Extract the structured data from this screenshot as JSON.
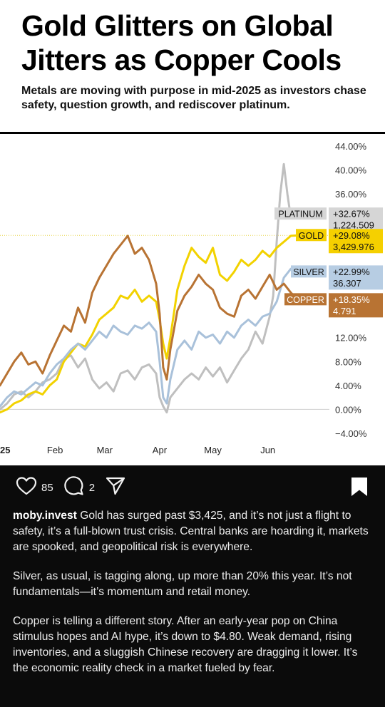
{
  "article": {
    "headline": "Gold Glitters on Global Jitters as Copper Cools",
    "subhead": "Metals are moving with purpose in mid-2025 as investors chase safety, question growth, and rediscover platinum."
  },
  "chart_data": {
    "type": "line",
    "title": "",
    "xlabel": "",
    "ylabel": "",
    "y_unit": "%",
    "ylim": [
      -4,
      44
    ],
    "yticks": [
      "44.00%",
      "40.00%",
      "36.00%",
      "",
      "",
      "",
      "",
      "12.00%",
      "8.00%",
      "4.00%",
      "0.00%",
      "−4.00%"
    ],
    "ytick_values": [
      44,
      40,
      36,
      32,
      28,
      24,
      20,
      12,
      8,
      4,
      0,
      -4
    ],
    "x_labels": [
      "25",
      "Feb",
      "Mar",
      "Apr",
      "May",
      "Jun"
    ],
    "x_label_pos": [
      0,
      31,
      59,
      90,
      120,
      151
    ],
    "x_range": [
      0,
      168
    ],
    "grid": false,
    "reference_line": 29.08,
    "series": [
      {
        "name": "PLATINUM",
        "color": "#bfbfbf",
        "change": "+32.67%",
        "price": "1,224.509",
        "last": 32.67,
        "points": [
          [
            0,
            0
          ],
          [
            4,
            1
          ],
          [
            8,
            2.5
          ],
          [
            12,
            3
          ],
          [
            16,
            2
          ],
          [
            20,
            3
          ],
          [
            24,
            4.5
          ],
          [
            28,
            5
          ],
          [
            32,
            6
          ],
          [
            36,
            8.5
          ],
          [
            40,
            9
          ],
          [
            44,
            7
          ],
          [
            48,
            8.5
          ],
          [
            52,
            5
          ],
          [
            56,
            3.5
          ],
          [
            60,
            4.5
          ],
          [
            64,
            3
          ],
          [
            68,
            6
          ],
          [
            72,
            6.5
          ],
          [
            76,
            5
          ],
          [
            80,
            7
          ],
          [
            84,
            7.5
          ],
          [
            88,
            6
          ],
          [
            90,
            2
          ],
          [
            92,
            0.5
          ],
          [
            94,
            -0.5
          ],
          [
            96,
            2
          ],
          [
            100,
            3.5
          ],
          [
            104,
            5
          ],
          [
            108,
            6
          ],
          [
            112,
            5
          ],
          [
            116,
            7
          ],
          [
            120,
            5.5
          ],
          [
            124,
            7
          ],
          [
            128,
            4.5
          ],
          [
            132,
            6.5
          ],
          [
            136,
            8.5
          ],
          [
            140,
            10
          ],
          [
            144,
            13
          ],
          [
            148,
            11
          ],
          [
            152,
            15.5
          ],
          [
            154,
            19
          ],
          [
            156,
            28
          ],
          [
            158,
            36
          ],
          [
            160,
            41
          ],
          [
            162,
            36
          ],
          [
            164,
            32
          ],
          [
            168,
            32.67
          ]
        ]
      },
      {
        "name": "GOLD",
        "color": "#f2d200",
        "change": "+29.08%",
        "price": "3,429.976",
        "last": 29.08,
        "points": [
          [
            0,
            -0.5
          ],
          [
            4,
            0
          ],
          [
            8,
            1
          ],
          [
            12,
            1.5
          ],
          [
            16,
            2.5
          ],
          [
            20,
            3
          ],
          [
            24,
            2.5
          ],
          [
            28,
            4
          ],
          [
            32,
            5
          ],
          [
            36,
            8
          ],
          [
            40,
            9.5
          ],
          [
            44,
            11
          ],
          [
            48,
            10.5
          ],
          [
            52,
            12.5
          ],
          [
            56,
            15
          ],
          [
            60,
            16
          ],
          [
            64,
            17
          ],
          [
            68,
            19
          ],
          [
            72,
            18.5
          ],
          [
            76,
            20
          ],
          [
            80,
            18
          ],
          [
            84,
            19
          ],
          [
            88,
            18
          ],
          [
            90,
            15
          ],
          [
            92,
            11
          ],
          [
            94,
            8.5
          ],
          [
            96,
            12
          ],
          [
            100,
            20
          ],
          [
            104,
            24
          ],
          [
            108,
            27
          ],
          [
            112,
            25.5
          ],
          [
            116,
            24.5
          ],
          [
            120,
            27
          ],
          [
            124,
            22.5
          ],
          [
            128,
            21.5
          ],
          [
            132,
            23
          ],
          [
            136,
            25
          ],
          [
            140,
            24
          ],
          [
            144,
            25
          ],
          [
            148,
            26.5
          ],
          [
            152,
            25.5
          ],
          [
            156,
            27
          ],
          [
            160,
            28
          ],
          [
            164,
            29
          ],
          [
            168,
            29.08
          ]
        ]
      },
      {
        "name": "SILVER",
        "color": "#a9c1da",
        "change": "+22.99%",
        "price": "36.307",
        "last": 22.99,
        "points": [
          [
            0,
            0.5
          ],
          [
            4,
            2
          ],
          [
            8,
            3
          ],
          [
            12,
            2.5
          ],
          [
            16,
            3.5
          ],
          [
            20,
            4.5
          ],
          [
            24,
            4
          ],
          [
            28,
            6
          ],
          [
            32,
            7.5
          ],
          [
            36,
            8.5
          ],
          [
            40,
            10
          ],
          [
            44,
            11
          ],
          [
            48,
            10
          ],
          [
            52,
            11.5
          ],
          [
            56,
            13
          ],
          [
            60,
            12
          ],
          [
            64,
            14
          ],
          [
            68,
            13
          ],
          [
            72,
            12.5
          ],
          [
            76,
            14
          ],
          [
            80,
            13.5
          ],
          [
            84,
            14.5
          ],
          [
            88,
            13
          ],
          [
            90,
            8
          ],
          [
            92,
            2
          ],
          [
            94,
            1
          ],
          [
            96,
            5
          ],
          [
            100,
            10
          ],
          [
            104,
            11.5
          ],
          [
            108,
            10
          ],
          [
            112,
            13
          ],
          [
            116,
            12
          ],
          [
            120,
            12.5
          ],
          [
            124,
            11
          ],
          [
            128,
            13
          ],
          [
            132,
            12
          ],
          [
            136,
            14
          ],
          [
            140,
            15
          ],
          [
            144,
            14
          ],
          [
            148,
            15.5
          ],
          [
            152,
            16
          ],
          [
            156,
            18
          ],
          [
            160,
            22
          ],
          [
            164,
            23.5
          ],
          [
            168,
            22.99
          ]
        ]
      },
      {
        "name": "COPPER",
        "color": "#b87333",
        "change": "+18.35%",
        "price": "4.791",
        "last": 18.35,
        "points": [
          [
            0,
            4
          ],
          [
            4,
            6
          ],
          [
            8,
            8
          ],
          [
            12,
            9.5
          ],
          [
            16,
            7.5
          ],
          [
            20,
            8
          ],
          [
            24,
            6
          ],
          [
            28,
            9
          ],
          [
            32,
            11.5
          ],
          [
            36,
            14
          ],
          [
            40,
            13
          ],
          [
            44,
            17
          ],
          [
            48,
            14.5
          ],
          [
            52,
            19.5
          ],
          [
            56,
            22
          ],
          [
            60,
            24
          ],
          [
            64,
            26
          ],
          [
            68,
            27.5
          ],
          [
            72,
            29
          ],
          [
            76,
            26
          ],
          [
            80,
            27
          ],
          [
            84,
            25
          ],
          [
            88,
            21
          ],
          [
            90,
            16
          ],
          [
            92,
            7
          ],
          [
            94,
            5
          ],
          [
            96,
            10
          ],
          [
            100,
            16.5
          ],
          [
            104,
            19
          ],
          [
            108,
            20.5
          ],
          [
            112,
            22.5
          ],
          [
            116,
            21
          ],
          [
            120,
            20
          ],
          [
            124,
            17
          ],
          [
            128,
            16
          ],
          [
            132,
            15.5
          ],
          [
            136,
            19
          ],
          [
            140,
            20
          ],
          [
            144,
            18.5
          ],
          [
            148,
            20.5
          ],
          [
            152,
            22.5
          ],
          [
            156,
            20
          ],
          [
            160,
            21
          ],
          [
            164,
            19.5
          ],
          [
            168,
            18.35
          ]
        ]
      }
    ]
  },
  "post": {
    "likes": "85",
    "comments": "2",
    "username": "moby.invest",
    "paragraphs": [
      "Gold has surged past $3,425, and it’s not just a flight to safety, it’s a full-blown trust crisis. Central banks are hoarding it, markets are spooked, and geopolitical risk is everywhere.",
      "Silver, as usual, is tagging along, up more than 20% this year. It’s not fundamentals—it’s momentum and retail money.",
      "Copper is telling a different story. After an early-year pop on China stimulus hopes and AI hype, it’s down to $4.80. Weak demand, rising inventories, and a sluggish Chinese recovery are dragging it lower. It’s the economic reality check in a market fueled by fear."
    ]
  },
  "icons": {
    "like": "heart-icon",
    "comment": "comment-icon",
    "share": "send-icon",
    "save": "bookmark-icon"
  }
}
